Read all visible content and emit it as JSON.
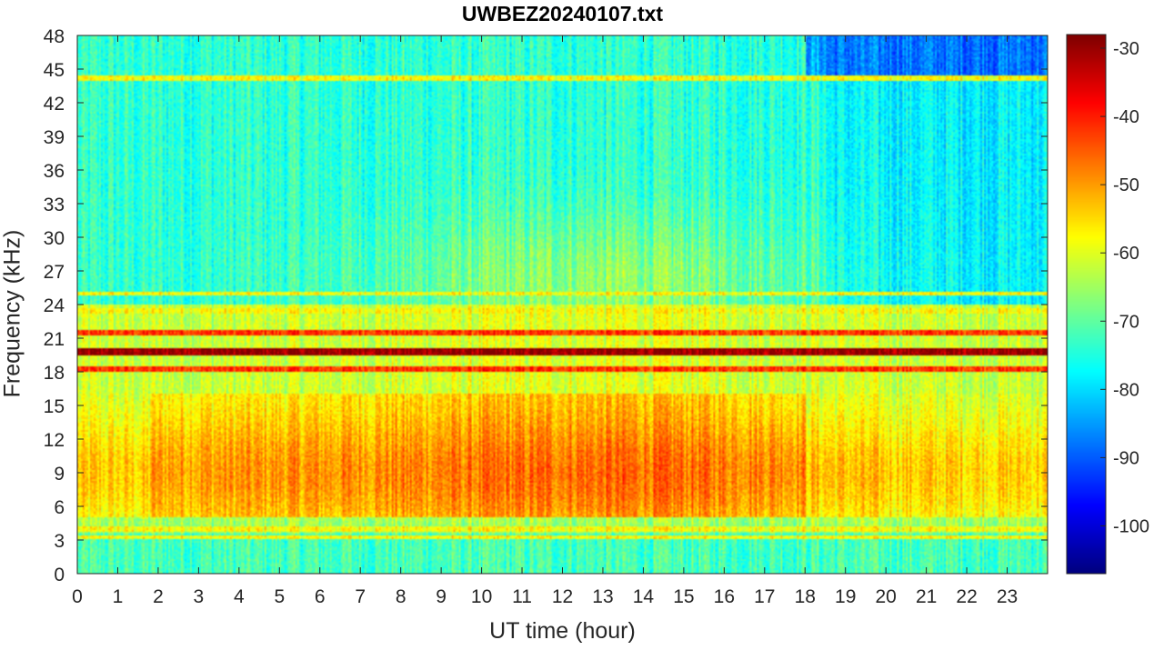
{
  "chart_data": {
    "type": "heatmap",
    "title": "UWBEZ20240107.txt",
    "xlabel": "UT time (hour)",
    "ylabel": "Frequency (kHz)",
    "xlim": [
      0,
      24
    ],
    "ylim": [
      0,
      48
    ],
    "x_ticks": [
      0,
      1,
      2,
      3,
      4,
      5,
      6,
      7,
      8,
      9,
      10,
      11,
      12,
      13,
      14,
      15,
      16,
      17,
      18,
      19,
      20,
      21,
      22,
      23
    ],
    "y_ticks": [
      0,
      3,
      6,
      9,
      12,
      15,
      18,
      21,
      24,
      27,
      30,
      33,
      36,
      39,
      42,
      45,
      48
    ],
    "colorbar": {
      "colormap": "jet",
      "clim": [
        -107,
        -28
      ],
      "ticks": [
        -30,
        -40,
        -50,
        -60,
        -70,
        -80,
        -90,
        -100
      ]
    },
    "features": {
      "strong_lines_khz": [
        19.8,
        18.2,
        21.5
      ],
      "weaker_lines_khz": [
        25.0,
        23.4,
        44.2,
        4.0,
        3.2
      ],
      "broadband_noise_peak_khz": [
        5,
        16
      ],
      "noise_max_hour": 13
    }
  }
}
